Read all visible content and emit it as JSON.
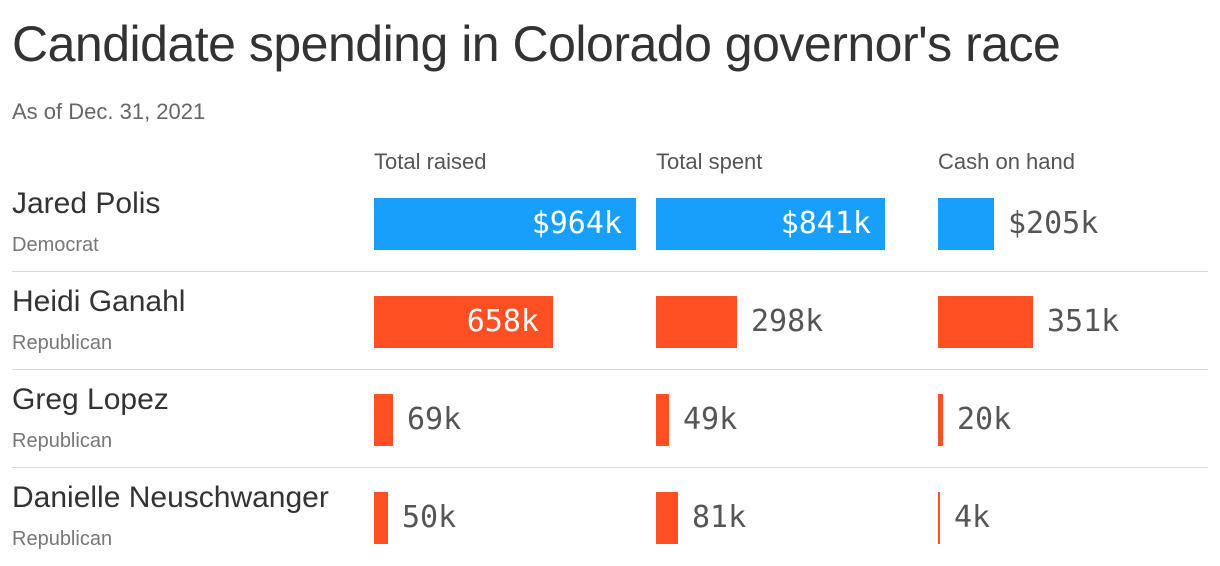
{
  "header": {
    "title": "Candidate spending in Colorado governor's race",
    "subtitle": "As of Dec. 31, 2021"
  },
  "colors": {
    "Democrat": "#189ffb",
    "Republican": "#ff5023",
    "separator": "#d9d9d9"
  },
  "chart_data": {
    "type": "bar",
    "title": "Candidate spending in Colorado governor's race",
    "subtitle": "As of Dec. 31, 2021",
    "columns": [
      "Total raised",
      "Total spent",
      "Cash on hand"
    ],
    "unit": "thousands of dollars",
    "rows": [
      {
        "name": "Jared Polis",
        "party": "Democrat",
        "values": [
          964,
          841,
          205
        ],
        "labels": [
          "$964k",
          "$841k",
          "$205k"
        ]
      },
      {
        "name": "Heidi Ganahl",
        "party": "Republican",
        "values": [
          658,
          298,
          351
        ],
        "labels": [
          "658k",
          "298k",
          "351k"
        ]
      },
      {
        "name": "Greg Lopez",
        "party": "Republican",
        "values": [
          69,
          49,
          20
        ],
        "labels": [
          "69k",
          "49k",
          "20k"
        ]
      },
      {
        "name": "Danielle Neuschwanger",
        "party": "Republican",
        "values": [
          50,
          81,
          4
        ],
        "labels": [
          "50k",
          "81k",
          "4k"
        ]
      }
    ]
  }
}
